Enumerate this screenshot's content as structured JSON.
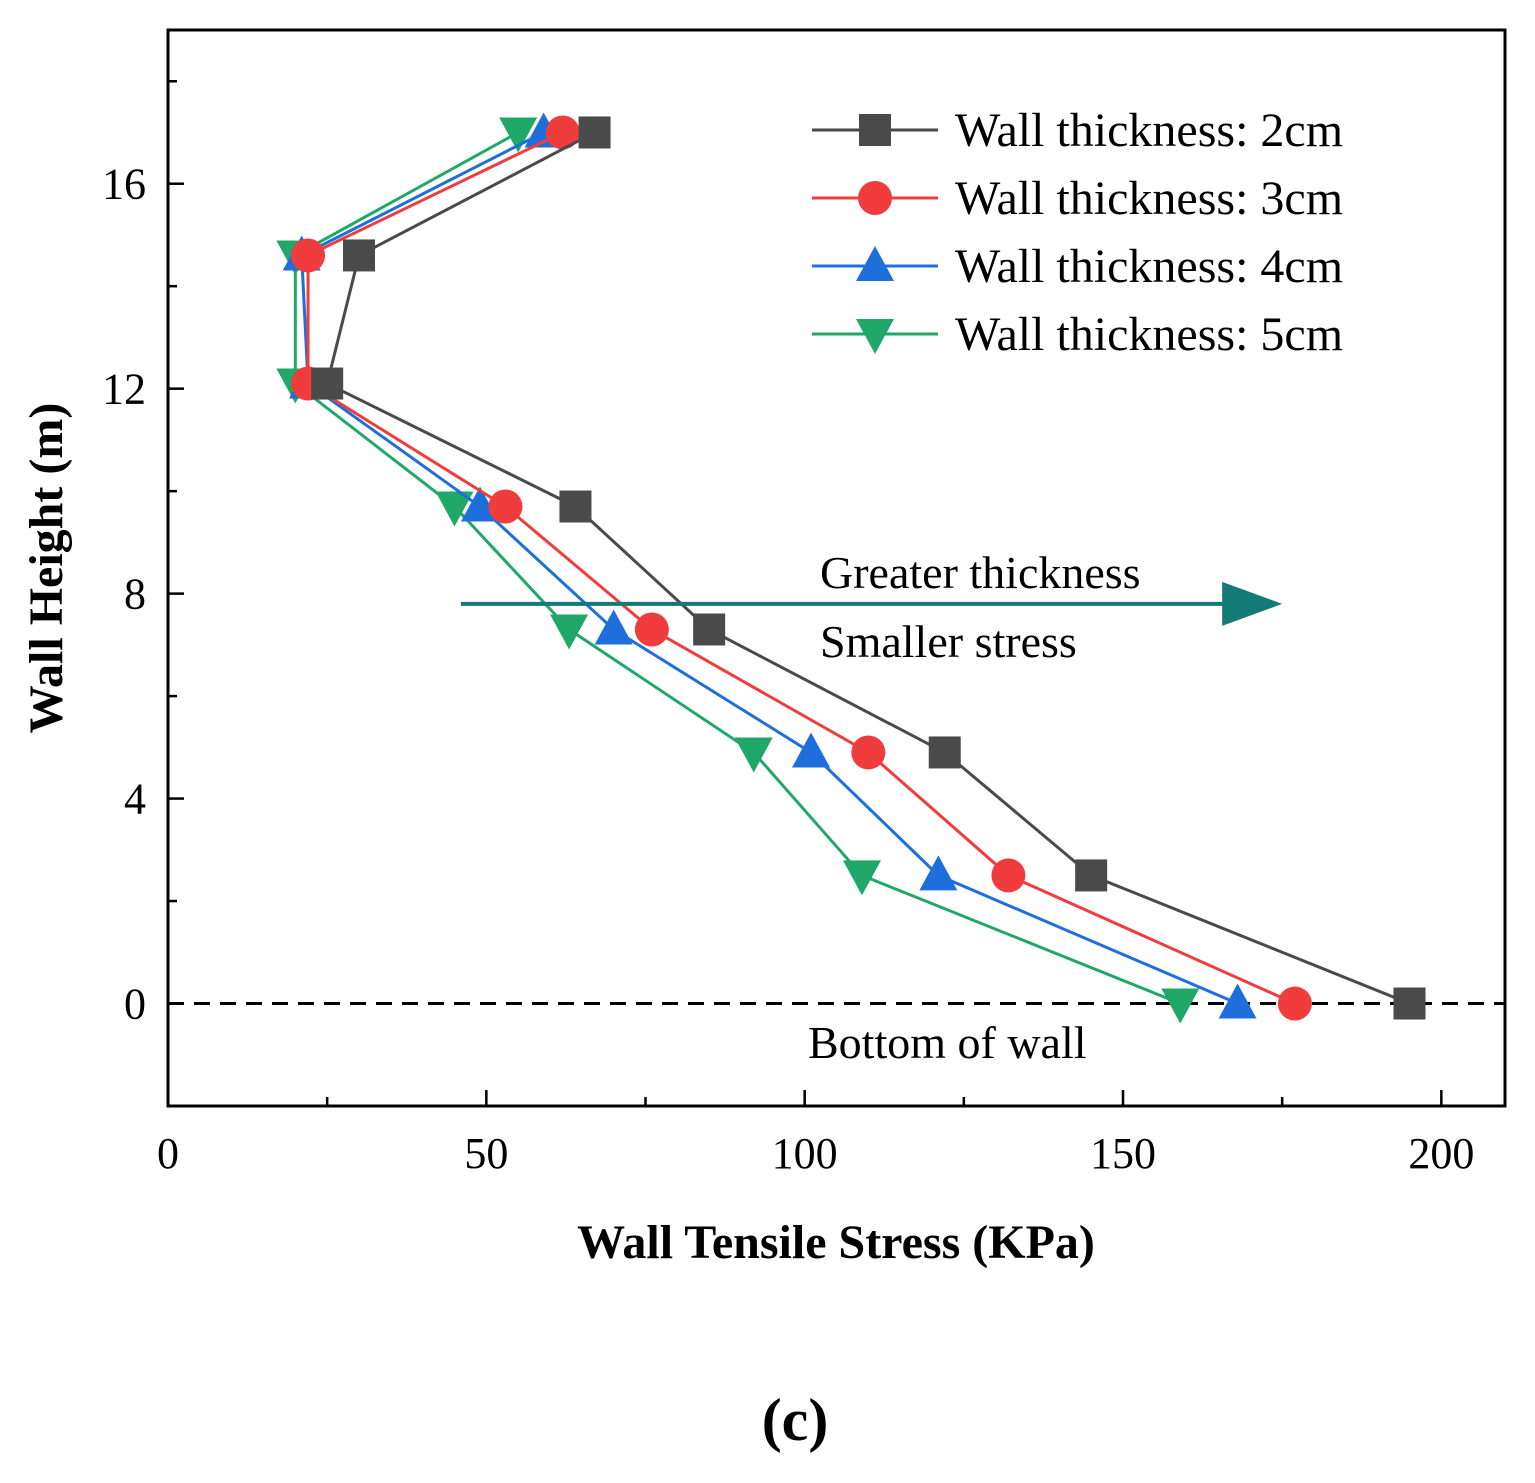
{
  "chart_data": {
    "type": "line",
    "title": "",
    "xlabel": "Wall Tensile Stress (KPa)",
    "ylabel": "Wall Height (m)",
    "xlim": [
      0,
      210
    ],
    "ylim": [
      -2,
      19
    ],
    "xticks": [
      0,
      50,
      100,
      150,
      200
    ],
    "yticks": [
      0,
      4,
      8,
      12,
      16
    ],
    "xtick_labels": [
      "0",
      "50",
      "100",
      "150",
      "200"
    ],
    "ytick_labels": [
      "0",
      "4",
      "8",
      "12",
      "16"
    ],
    "grid": false,
    "legend_position": "top-right",
    "series": [
      {
        "name": "Wall thickness: 2cm",
        "color": "#4a4a4a",
        "marker": "square",
        "x": [
          195,
          145,
          122,
          85,
          64,
          25,
          30,
          67
        ],
        "y": [
          0,
          2.5,
          4.9,
          7.3,
          9.7,
          12.1,
          14.6,
          17.0
        ]
      },
      {
        "name": "Wall thickness: 3cm",
        "color": "#f03c3c",
        "marker": "circle",
        "x": [
          177,
          132,
          110,
          76,
          53,
          22,
          22,
          62
        ],
        "y": [
          0,
          2.5,
          4.9,
          7.3,
          9.7,
          12.1,
          14.6,
          17.0
        ]
      },
      {
        "name": "Wall thickness: 4cm",
        "color": "#1e6fdc",
        "marker": "triangle-up",
        "x": [
          168,
          121,
          101,
          70,
          49,
          22,
          21,
          59
        ],
        "y": [
          0,
          2.5,
          4.9,
          7.3,
          9.7,
          12.1,
          14.6,
          17.0
        ]
      },
      {
        "name": "Wall thickness: 5cm",
        "color": "#1fa868",
        "marker": "triangle-down",
        "x": [
          159,
          109,
          92,
          63,
          45,
          20,
          20,
          55
        ],
        "y": [
          0,
          2.5,
          4.9,
          7.3,
          9.7,
          12.1,
          14.6,
          17.0
        ]
      }
    ],
    "reference_line": {
      "y": 0,
      "style": "dashed",
      "label": "Bottom of wall"
    },
    "annotations": {
      "line1": "Greater thickness",
      "line2": "Smaller  stress",
      "arrow_color": "#137a78",
      "arrow_from": [
        46,
        7.8
      ],
      "arrow_to": [
        175,
        7.8
      ]
    },
    "panel_label": "(c)"
  }
}
